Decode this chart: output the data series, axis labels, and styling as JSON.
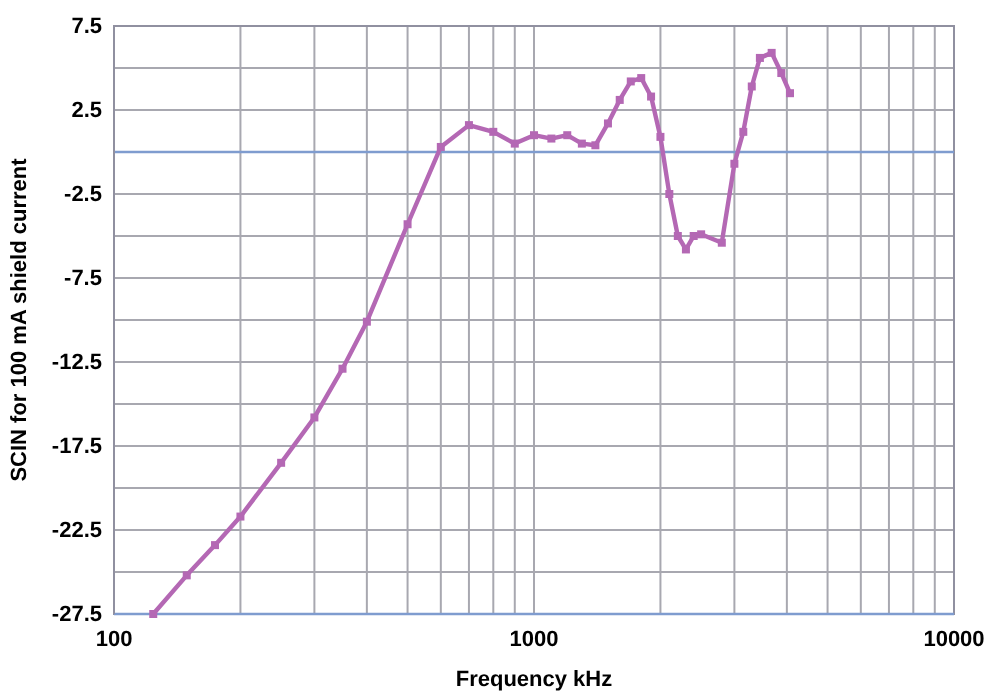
{
  "chart_data": {
    "type": "line",
    "xlabel": "Frequency  kHz",
    "ylabel": "SCIN for 100 mA shield current",
    "log": "x",
    "xlim": [
      100,
      10000
    ],
    "ylim": [
      -27.5,
      7.5
    ],
    "xticks": [
      100,
      {
        "value": 200,
        "label": null
      },
      {
        "value": 300,
        "label": null
      },
      {
        "value": 400,
        "label": null
      },
      {
        "value": 500,
        "label": null
      },
      {
        "value": 600,
        "label": null
      },
      {
        "value": 700,
        "label": null
      },
      {
        "value": 800,
        "label": null
      },
      {
        "value": 900,
        "label": null
      },
      1000,
      {
        "value": 2000,
        "label": null
      },
      {
        "value": 3000,
        "label": null
      },
      {
        "value": 4000,
        "label": null
      },
      {
        "value": 5000,
        "label": null
      },
      {
        "value": 6000,
        "label": null
      },
      {
        "value": 7000,
        "label": null
      },
      {
        "value": 8000,
        "label": null
      },
      {
        "value": 9000,
        "label": null
      },
      10000
    ],
    "yticks": [
      -27.5,
      {
        "value": -25,
        "label": null
      },
      -22.5,
      {
        "value": -20,
        "label": null
      },
      -17.5,
      {
        "value": -15,
        "label": null
      },
      -12.5,
      {
        "value": -10,
        "label": null
      },
      -7.5,
      {
        "value": -5,
        "label": null
      },
      -2.5,
      {
        "value": 0,
        "label": null
      },
      2.5,
      {
        "value": 5,
        "label": null
      },
      7.5
    ],
    "grid": true,
    "marker": "square",
    "line_style": "solid",
    "ref_lines": [
      {
        "axis": "y",
        "value": 0,
        "label": null,
        "color": "#7f9ccf"
      }
    ],
    "x": [
      124,
      149,
      174,
      200,
      250,
      300,
      350,
      400,
      500,
      600,
      700,
      800,
      900,
      1000,
      1100,
      1200,
      1300,
      1400,
      1500,
      1600,
      1700,
      1800,
      1900,
      2000,
      2100,
      2200,
      2300,
      2400,
      2500,
      2800,
      3000,
      3150,
      3300,
      3450,
      3680,
      3880,
      4070
    ],
    "series": [
      {
        "color": "#b468b4",
        "values": [
          -27.5,
          -25.2,
          -23.4,
          -21.7,
          -18.5,
          -15.8,
          -12.9,
          -10.1,
          -4.3,
          0.3,
          1.6,
          1.2,
          0.5,
          1.0,
          0.8,
          1.0,
          0.5,
          0.4,
          1.7,
          3.1,
          4.2,
          4.4,
          3.3,
          0.9,
          -2.5,
          -5.0,
          -5.8,
          -5.0,
          -4.9,
          -5.4,
          -0.7,
          1.2,
          3.9,
          5.6,
          5.9,
          4.7,
          3.5
        ]
      }
    ]
  }
}
